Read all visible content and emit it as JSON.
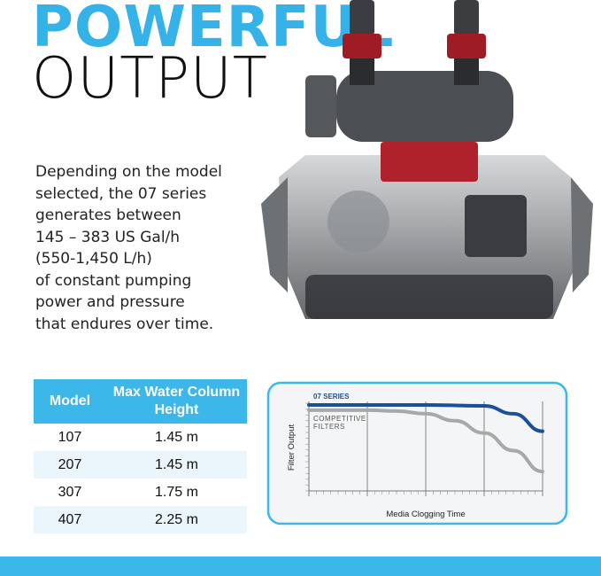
{
  "headline": {
    "line1": "POWERFUL",
    "line2": "OUTPUT"
  },
  "description": [
    "Depending on the model",
    "selected, the 07 series",
    "generates between",
    "145 – 383 US Gal/h",
    "(550-1,450 L/h)",
    "of constant pumping",
    "power and pressure",
    "that endures over time."
  ],
  "table": {
    "headers": [
      "Model",
      "Max Water Column Height"
    ],
    "rows": [
      [
        "107",
        "1.45 m"
      ],
      [
        "207",
        "1.45 m"
      ],
      [
        "307",
        "1.75 m"
      ],
      [
        "407",
        "2.25 m"
      ]
    ]
  },
  "chart_data": {
    "type": "line",
    "xlabel": "Media Clogging Time",
    "ylabel": "Filter Output",
    "xlim": [
      0,
      1
    ],
    "ylim": [
      0,
      1
    ],
    "grid": true,
    "series": [
      {
        "name": "07 SERIES",
        "color": "#1c4f96",
        "x": [
          0,
          0.25,
          0.5,
          0.75,
          0.875,
          1
        ],
        "y": [
          0.98,
          0.98,
          0.98,
          0.97,
          0.88,
          0.68
        ]
      },
      {
        "name": "COMPETITIVE FILTERS",
        "color": "#a8a8a8",
        "x": [
          0,
          0.25,
          0.375,
          0.5,
          0.625,
          0.75,
          0.875,
          1
        ],
        "y": [
          0.92,
          0.92,
          0.91,
          0.88,
          0.8,
          0.66,
          0.46,
          0.22
        ]
      }
    ]
  },
  "colors": {
    "accent": "#3bb7ea",
    "series_blue": "#1c4f96"
  }
}
